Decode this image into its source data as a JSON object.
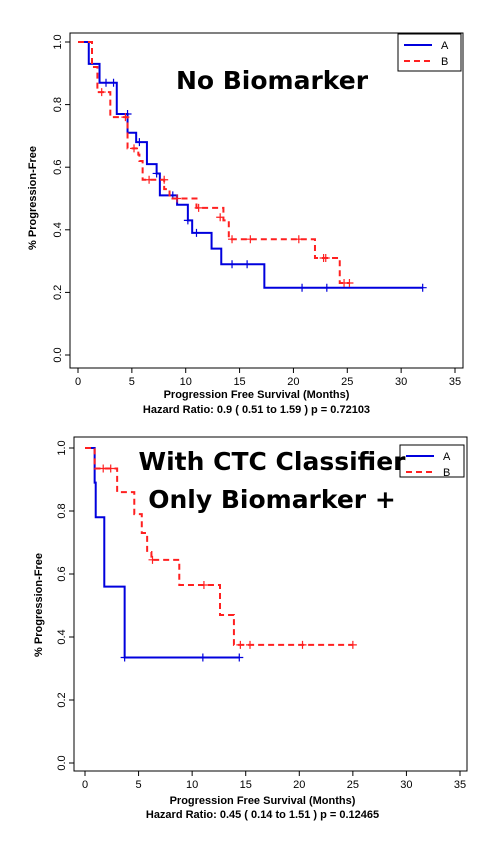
{
  "chart_data": [
    {
      "type": "line",
      "title": "No Biomarker",
      "xlabel": "Progression Free Survival (Months)",
      "ylabel": "% Progression-Free",
      "subtitle": "Hazard Ratio: 0.9  ( 0.51 to 1.59 )  p = 0.72103",
      "xlim": [
        0,
        35
      ],
      "ylim": [
        0,
        1
      ],
      "x_ticks": [
        "0",
        "5",
        "10",
        "15",
        "20",
        "25",
        "30",
        "35"
      ],
      "y_ticks": [
        "0.0",
        "0.2",
        "0.4",
        "0.6",
        "0.8",
        "1.0"
      ],
      "legend_position": "top-right",
      "series": [
        {
          "name": "A",
          "color": "#0000dd",
          "line_style": "solid",
          "steps": [
            [
              0,
              1.0
            ],
            [
              1.0,
              0.93
            ],
            [
              2.0,
              0.87
            ],
            [
              3.6,
              0.77
            ],
            [
              4.6,
              0.71
            ],
            [
              5.4,
              0.68
            ],
            [
              6.4,
              0.61
            ],
            [
              7.3,
              0.58
            ],
            [
              7.6,
              0.51
            ],
            [
              9.2,
              0.48
            ],
            [
              10.2,
              0.43
            ],
            [
              10.6,
              0.39
            ],
            [
              12.4,
              0.34
            ],
            [
              13.3,
              0.29
            ],
            [
              17.3,
              0.215
            ],
            [
              32,
              0.215
            ]
          ],
          "censors": [
            [
              2.6,
              0.87
            ],
            [
              3.3,
              0.87
            ],
            [
              4.6,
              0.77
            ],
            [
              5.7,
              0.68
            ],
            [
              7.3,
              0.58
            ],
            [
              8.8,
              0.51
            ],
            [
              10.2,
              0.43
            ],
            [
              11.0,
              0.39
            ],
            [
              14.3,
              0.29
            ],
            [
              15.7,
              0.29
            ],
            [
              20.8,
              0.215
            ],
            [
              23.1,
              0.215
            ],
            [
              32,
              0.215
            ]
          ]
        },
        {
          "name": "B",
          "color": "#ff2020",
          "line_style": "dashed",
          "steps": [
            [
              0,
              1.0
            ],
            [
              1.3,
              0.92
            ],
            [
              1.8,
              0.84
            ],
            [
              3.0,
              0.76
            ],
            [
              4.6,
              0.66
            ],
            [
              5.6,
              0.64
            ],
            [
              5.7,
              0.62
            ],
            [
              6.0,
              0.56
            ],
            [
              8.0,
              0.53
            ],
            [
              8.5,
              0.5
            ],
            [
              11.0,
              0.47
            ],
            [
              13.5,
              0.43
            ],
            [
              14.0,
              0.37
            ],
            [
              22.0,
              0.31
            ],
            [
              24.3,
              0.23
            ],
            [
              25.2,
              0.23
            ]
          ],
          "censors": [
            [
              2.2,
              0.84
            ],
            [
              4.4,
              0.76
            ],
            [
              5.2,
              0.66
            ],
            [
              6.6,
              0.56
            ],
            [
              8.0,
              0.56
            ],
            [
              9.2,
              0.5
            ],
            [
              11.2,
              0.47
            ],
            [
              13.2,
              0.44
            ],
            [
              14.3,
              0.37
            ],
            [
              16.0,
              0.37
            ],
            [
              20.5,
              0.37
            ],
            [
              22.8,
              0.31
            ],
            [
              23.0,
              0.31
            ],
            [
              24.7,
              0.23
            ],
            [
              25.2,
              0.23
            ]
          ]
        }
      ]
    },
    {
      "type": "line",
      "title": "With CTC Classifier Only Biomarker +",
      "title_lines": [
        "With CTC Classifier",
        "Only Biomarker +"
      ],
      "xlabel": "Progression Free Survival (Months)",
      "ylabel": "% Progression-Free",
      "subtitle": "Hazard Ratio: 0.45  ( 0.14 to 1.51 )  p = 0.12465",
      "xlim": [
        0,
        35
      ],
      "ylim": [
        0,
        1
      ],
      "x_ticks": [
        "0",
        "5",
        "10",
        "15",
        "20",
        "25",
        "30",
        "35"
      ],
      "y_ticks": [
        "0.0",
        "0.2",
        "0.4",
        "0.6",
        "0.8",
        "1.0"
      ],
      "legend_position": "top-right",
      "series": [
        {
          "name": "A",
          "color": "#0000dd",
          "line_style": "solid",
          "steps": [
            [
              0,
              1.0
            ],
            [
              0.9,
              0.89
            ],
            [
              1.0,
              0.78
            ],
            [
              1.8,
              0.56
            ],
            [
              3.7,
              0.335
            ],
            [
              14.4,
              0.335
            ]
          ],
          "censors": [
            [
              3.7,
              0.335
            ],
            [
              11.0,
              0.335
            ],
            [
              14.4,
              0.335
            ]
          ]
        },
        {
          "name": "B",
          "color": "#ff2020",
          "line_style": "dashed",
          "steps": [
            [
              0,
              1.0
            ],
            [
              0.9,
              0.935
            ],
            [
              3.0,
              0.86
            ],
            [
              4.6,
              0.79
            ],
            [
              5.3,
              0.73
            ],
            [
              5.8,
              0.67
            ],
            [
              6.2,
              0.645
            ],
            [
              8.8,
              0.565
            ],
            [
              12.6,
              0.47
            ],
            [
              13.9,
              0.375
            ],
            [
              25,
              0.375
            ]
          ],
          "censors": [
            [
              1.7,
              0.935
            ],
            [
              2.4,
              0.935
            ],
            [
              6.3,
              0.645
            ],
            [
              11.1,
              0.565
            ],
            [
              14.5,
              0.375
            ],
            [
              15.4,
              0.375
            ],
            [
              20.3,
              0.375
            ],
            [
              25,
              0.375
            ]
          ]
        }
      ]
    }
  ]
}
